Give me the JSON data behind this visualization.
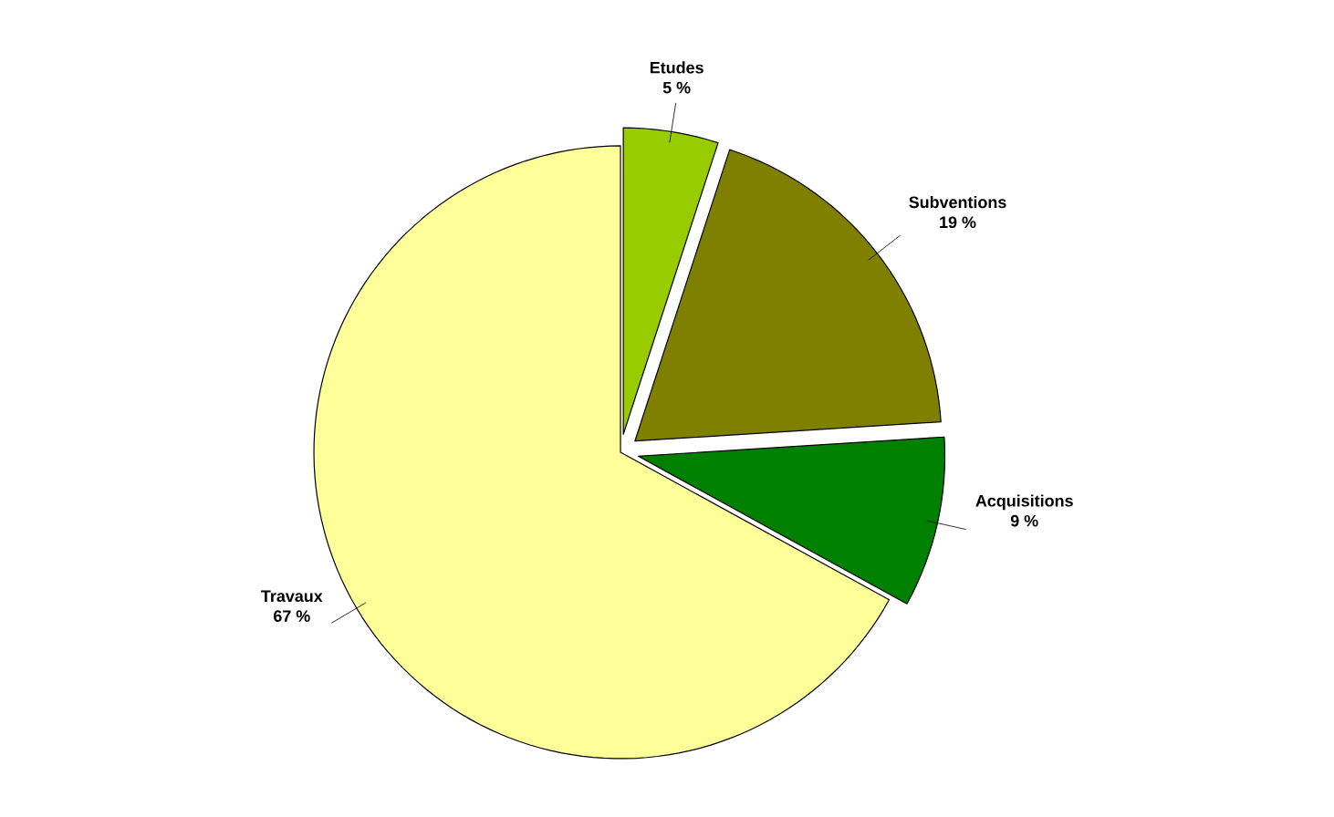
{
  "chart_data": {
    "type": "pie",
    "categories": [
      "Etudes",
      "Subventions",
      "Acquisitions",
      "Travaux"
    ],
    "values": [
      5,
      19,
      9,
      67
    ],
    "value_labels": [
      "5 %",
      "19 %",
      "9 %",
      "67 %"
    ],
    "colors": [
      "#99cc00",
      "#808000",
      "#008000",
      "#ffff99"
    ]
  }
}
